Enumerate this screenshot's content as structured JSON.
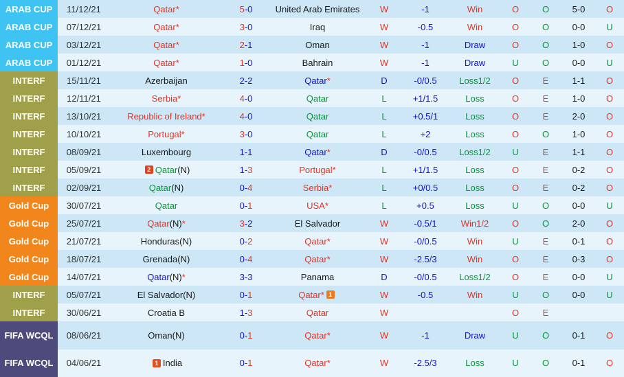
{
  "palette": {
    "red": "#e53324",
    "blue": "#1414cc",
    "green": "#009933",
    "black": "#1a1a1a",
    "date_text": "#333333",
    "label_text": "#ffffff",
    "row_dark": "#cde7f6",
    "row_light": "#e8f4fb",
    "comp_colors": {
      "arab": "#3fc3f3",
      "interf": "#a0a04a",
      "gold": "#f0861c",
      "fifa": "#4c4b7b"
    }
  },
  "rows": [
    {
      "comp": "ARAB CUP",
      "compKey": "arab",
      "date": "11/12/21",
      "home": [
        [
          "Qatar*",
          "red"
        ]
      ],
      "homeBadge": null,
      "score": [
        [
          "5",
          "red"
        ],
        [
          "-0",
          "blue"
        ]
      ],
      "away": [
        [
          "United Arab Emirates",
          "black"
        ]
      ],
      "awayBadge": null,
      "wdl": [
        "W",
        "red"
      ],
      "hcap": "-1",
      "res": [
        "Win",
        "red"
      ],
      "ou1": [
        "O",
        "red"
      ],
      "oe": [
        "O",
        "green"
      ],
      "ht": "5-0",
      "ou2": [
        "O",
        "red"
      ],
      "tall": false
    },
    {
      "comp": "ARAB CUP",
      "compKey": "arab",
      "date": "07/12/21",
      "home": [
        [
          "Qatar*",
          "red"
        ]
      ],
      "homeBadge": null,
      "score": [
        [
          "3",
          "red"
        ],
        [
          "-0",
          "blue"
        ]
      ],
      "away": [
        [
          "Iraq",
          "black"
        ]
      ],
      "awayBadge": null,
      "wdl": [
        "W",
        "red"
      ],
      "hcap": "-0.5",
      "res": [
        "Win",
        "red"
      ],
      "ou1": [
        "O",
        "red"
      ],
      "oe": [
        "O",
        "green"
      ],
      "ht": "0-0",
      "ou2": [
        "U",
        "green"
      ],
      "tall": false
    },
    {
      "comp": "ARAB CUP",
      "compKey": "arab",
      "date": "03/12/21",
      "home": [
        [
          "Qatar*",
          "red"
        ]
      ],
      "homeBadge": null,
      "score": [
        [
          "2",
          "red"
        ],
        [
          "-1",
          "blue"
        ]
      ],
      "away": [
        [
          "Oman",
          "black"
        ]
      ],
      "awayBadge": null,
      "wdl": [
        "W",
        "red"
      ],
      "hcap": "-1",
      "res": [
        "Draw",
        "blue"
      ],
      "ou1": [
        "O",
        "red"
      ],
      "oe": [
        "O",
        "green"
      ],
      "ht": "1-0",
      "ou2": [
        "O",
        "red"
      ],
      "tall": false
    },
    {
      "comp": "ARAB CUP",
      "compKey": "arab",
      "date": "01/12/21",
      "home": [
        [
          "Qatar*",
          "red"
        ]
      ],
      "homeBadge": null,
      "score": [
        [
          "1",
          "red"
        ],
        [
          "-0",
          "blue"
        ]
      ],
      "away": [
        [
          "Bahrain",
          "black"
        ]
      ],
      "awayBadge": null,
      "wdl": [
        "W",
        "red"
      ],
      "hcap": "-1",
      "res": [
        "Draw",
        "blue"
      ],
      "ou1": [
        "U",
        "green"
      ],
      "oe": [
        "O",
        "green"
      ],
      "ht": "0-0",
      "ou2": [
        "U",
        "green"
      ],
      "tall": false
    },
    {
      "comp": "INTERF",
      "compKey": "interf",
      "date": "15/11/21",
      "home": [
        [
          "Azerbaijan",
          "black"
        ]
      ],
      "homeBadge": null,
      "score": [
        [
          "2-2",
          "blue"
        ]
      ],
      "away": [
        [
          "Qatar",
          "blue"
        ],
        [
          "*",
          "red"
        ]
      ],
      "awayBadge": null,
      "wdl": [
        "D",
        "blue"
      ],
      "hcap": "-0/0.5",
      "res": [
        "Loss1/2",
        "green"
      ],
      "ou1": [
        "O",
        "red"
      ],
      "oe": [
        "E",
        "red"
      ],
      "ht": "1-1",
      "ou2": [
        "O",
        "red"
      ],
      "tall": false
    },
    {
      "comp": "INTERF",
      "compKey": "interf",
      "date": "12/11/21",
      "home": [
        [
          "Serbia*",
          "red"
        ]
      ],
      "homeBadge": null,
      "score": [
        [
          "4",
          "red"
        ],
        [
          "-0",
          "blue"
        ]
      ],
      "away": [
        [
          "Qatar",
          "green"
        ]
      ],
      "awayBadge": null,
      "wdl": [
        "L",
        "green"
      ],
      "hcap": "+1/1.5",
      "res": [
        "Loss",
        "green"
      ],
      "ou1": [
        "O",
        "red"
      ],
      "oe": [
        "E",
        "red"
      ],
      "ht": "1-0",
      "ou2": [
        "O",
        "red"
      ],
      "tall": false
    },
    {
      "comp": "INTERF",
      "compKey": "interf",
      "date": "13/10/21",
      "home": [
        [
          "Republic of Ireland*",
          "red"
        ]
      ],
      "homeBadge": null,
      "score": [
        [
          "4",
          "red"
        ],
        [
          "-0",
          "blue"
        ]
      ],
      "away": [
        [
          "Qatar",
          "green"
        ]
      ],
      "awayBadge": null,
      "wdl": [
        "L",
        "green"
      ],
      "hcap": "+0.5/1",
      "res": [
        "Loss",
        "green"
      ],
      "ou1": [
        "O",
        "red"
      ],
      "oe": [
        "E",
        "red"
      ],
      "ht": "2-0",
      "ou2": [
        "O",
        "red"
      ],
      "tall": false
    },
    {
      "comp": "INTERF",
      "compKey": "interf",
      "date": "10/10/21",
      "home": [
        [
          "Portugal*",
          "red"
        ]
      ],
      "homeBadge": null,
      "score": [
        [
          "3",
          "red"
        ],
        [
          "-0",
          "blue"
        ]
      ],
      "away": [
        [
          "Qatar",
          "green"
        ]
      ],
      "awayBadge": null,
      "wdl": [
        "L",
        "green"
      ],
      "hcap": "+2",
      "res": [
        "Loss",
        "green"
      ],
      "ou1": [
        "O",
        "red"
      ],
      "oe": [
        "O",
        "green"
      ],
      "ht": "1-0",
      "ou2": [
        "O",
        "red"
      ],
      "tall": false
    },
    {
      "comp": "INTERF",
      "compKey": "interf",
      "date": "08/09/21",
      "home": [
        [
          "Luxembourg",
          "black"
        ]
      ],
      "homeBadge": null,
      "score": [
        [
          "1-1",
          "blue"
        ]
      ],
      "away": [
        [
          "Qatar",
          "blue"
        ],
        [
          "*",
          "red"
        ]
      ],
      "awayBadge": null,
      "wdl": [
        "D",
        "blue"
      ],
      "hcap": "-0/0.5",
      "res": [
        "Loss1/2",
        "green"
      ],
      "ou1": [
        "U",
        "green"
      ],
      "oe": [
        "E",
        "red"
      ],
      "ht": "1-1",
      "ou2": [
        "O",
        "red"
      ],
      "tall": false
    },
    {
      "comp": "INTERF",
      "compKey": "interf",
      "date": "05/09/21",
      "home": [
        [
          "Qatar",
          "green"
        ],
        [
          "(N)",
          "black"
        ]
      ],
      "homeBadge": {
        "text": "2",
        "bg": "#e2401f",
        "pos": "before"
      },
      "score": [
        [
          "1-",
          "blue"
        ],
        [
          "3",
          "red"
        ]
      ],
      "away": [
        [
          "Portugal*",
          "red"
        ]
      ],
      "awayBadge": null,
      "wdl": [
        "L",
        "green"
      ],
      "hcap": "+1/1.5",
      "res": [
        "Loss",
        "green"
      ],
      "ou1": [
        "O",
        "red"
      ],
      "oe": [
        "E",
        "red"
      ],
      "ht": "0-2",
      "ou2": [
        "O",
        "red"
      ],
      "tall": false
    },
    {
      "comp": "INTERF",
      "compKey": "interf",
      "date": "02/09/21",
      "home": [
        [
          "Qatar",
          "green"
        ],
        [
          "(N)",
          "black"
        ]
      ],
      "homeBadge": null,
      "score": [
        [
          "0-",
          "blue"
        ],
        [
          "4",
          "red"
        ]
      ],
      "away": [
        [
          "Serbia*",
          "red"
        ]
      ],
      "awayBadge": null,
      "wdl": [
        "L",
        "green"
      ],
      "hcap": "+0/0.5",
      "res": [
        "Loss",
        "green"
      ],
      "ou1": [
        "O",
        "red"
      ],
      "oe": [
        "E",
        "red"
      ],
      "ht": "0-2",
      "ou2": [
        "O",
        "red"
      ],
      "tall": false
    },
    {
      "comp": "Gold Cup",
      "compKey": "gold",
      "date": "30/07/21",
      "home": [
        [
          "Qatar",
          "green"
        ]
      ],
      "homeBadge": null,
      "score": [
        [
          "0-",
          "blue"
        ],
        [
          "1",
          "red"
        ]
      ],
      "away": [
        [
          "USA*",
          "red"
        ]
      ],
      "awayBadge": null,
      "wdl": [
        "L",
        "green"
      ],
      "hcap": "+0.5",
      "res": [
        "Loss",
        "green"
      ],
      "ou1": [
        "U",
        "green"
      ],
      "oe": [
        "O",
        "green"
      ],
      "ht": "0-0",
      "ou2": [
        "U",
        "green"
      ],
      "tall": false
    },
    {
      "comp": "Gold Cup",
      "compKey": "gold",
      "date": "25/07/21",
      "home": [
        [
          "Qatar",
          "red"
        ],
        [
          "(N)",
          "black"
        ],
        [
          "*",
          "red"
        ]
      ],
      "homeBadge": null,
      "score": [
        [
          "3",
          "red"
        ],
        [
          "-2",
          "blue"
        ]
      ],
      "away": [
        [
          "El Salvador",
          "black"
        ]
      ],
      "awayBadge": null,
      "wdl": [
        "W",
        "red"
      ],
      "hcap": "-0.5/1",
      "res": [
        "Win1/2",
        "red"
      ],
      "ou1": [
        "O",
        "red"
      ],
      "oe": [
        "O",
        "green"
      ],
      "ht": "2-0",
      "ou2": [
        "O",
        "red"
      ],
      "tall": false
    },
    {
      "comp": "Gold Cup",
      "compKey": "gold",
      "date": "21/07/21",
      "home": [
        [
          "Honduras(N)",
          "black"
        ]
      ],
      "homeBadge": null,
      "score": [
        [
          "0-",
          "blue"
        ],
        [
          "2",
          "red"
        ]
      ],
      "away": [
        [
          "Qatar*",
          "red"
        ]
      ],
      "awayBadge": null,
      "wdl": [
        "W",
        "red"
      ],
      "hcap": "-0/0.5",
      "res": [
        "Win",
        "red"
      ],
      "ou1": [
        "U",
        "green"
      ],
      "oe": [
        "E",
        "red"
      ],
      "ht": "0-1",
      "ou2": [
        "O",
        "red"
      ],
      "tall": false
    },
    {
      "comp": "Gold Cup",
      "compKey": "gold",
      "date": "18/07/21",
      "home": [
        [
          "Grenada(N)",
          "black"
        ]
      ],
      "homeBadge": null,
      "score": [
        [
          "0-",
          "blue"
        ],
        [
          "4",
          "red"
        ]
      ],
      "away": [
        [
          "Qatar*",
          "red"
        ]
      ],
      "awayBadge": null,
      "wdl": [
        "W",
        "red"
      ],
      "hcap": "-2.5/3",
      "res": [
        "Win",
        "red"
      ],
      "ou1": [
        "O",
        "red"
      ],
      "oe": [
        "E",
        "red"
      ],
      "ht": "0-3",
      "ou2": [
        "O",
        "red"
      ],
      "tall": false
    },
    {
      "comp": "Gold Cup",
      "compKey": "gold",
      "date": "14/07/21",
      "home": [
        [
          "Qatar",
          "blue"
        ],
        [
          "(N)",
          "black"
        ],
        [
          "*",
          "red"
        ]
      ],
      "homeBadge": null,
      "score": [
        [
          "3-3",
          "blue"
        ]
      ],
      "away": [
        [
          "Panama",
          "black"
        ]
      ],
      "awayBadge": null,
      "wdl": [
        "D",
        "blue"
      ],
      "hcap": "-0/0.5",
      "res": [
        "Loss1/2",
        "green"
      ],
      "ou1": [
        "O",
        "red"
      ],
      "oe": [
        "E",
        "red"
      ],
      "ht": "0-0",
      "ou2": [
        "U",
        "green"
      ],
      "tall": false
    },
    {
      "comp": "INTERF",
      "compKey": "interf",
      "date": "05/07/21",
      "home": [
        [
          "El Salvador(N)",
          "black"
        ]
      ],
      "homeBadge": null,
      "score": [
        [
          "0-",
          "blue"
        ],
        [
          "1",
          "red"
        ]
      ],
      "away": [
        [
          "Qatar*",
          "red"
        ]
      ],
      "awayBadge": {
        "text": "1",
        "bg": "#ed7a1d",
        "pos": "after"
      },
      "wdl": [
        "W",
        "red"
      ],
      "hcap": "-0.5",
      "res": [
        "Win",
        "red"
      ],
      "ou1": [
        "U",
        "green"
      ],
      "oe": [
        "O",
        "green"
      ],
      "ht": "0-0",
      "ou2": [
        "U",
        "green"
      ],
      "tall": false
    },
    {
      "comp": "INTERF",
      "compKey": "interf",
      "date": "30/06/21",
      "home": [
        [
          "Croatia B",
          "black"
        ]
      ],
      "homeBadge": null,
      "score": [
        [
          "1-",
          "blue"
        ],
        [
          "3",
          "red"
        ]
      ],
      "away": [
        [
          "Qatar",
          "red"
        ]
      ],
      "awayBadge": null,
      "wdl": [
        "W",
        "red"
      ],
      "hcap": "",
      "res": null,
      "ou1": [
        "O",
        "red"
      ],
      "oe": [
        "E",
        "red"
      ],
      "ht": "",
      "ou2": null,
      "tall": false
    },
    {
      "comp": "FIFA WCQL",
      "compKey": "fifa",
      "date": "08/06/21",
      "home": [
        [
          "Oman(N)",
          "black"
        ]
      ],
      "homeBadge": null,
      "score": [
        [
          "0-",
          "blue"
        ],
        [
          "1",
          "red"
        ]
      ],
      "away": [
        [
          "Qatar*",
          "red"
        ]
      ],
      "awayBadge": null,
      "wdl": [
        "W",
        "red"
      ],
      "hcap": "-1",
      "res": [
        "Draw",
        "blue"
      ],
      "ou1": [
        "U",
        "green"
      ],
      "oe": [
        "O",
        "green"
      ],
      "ht": "0-1",
      "ou2": [
        "O",
        "red"
      ],
      "tall": true
    },
    {
      "comp": "FIFA WCQL",
      "compKey": "fifa",
      "date": "04/06/21",
      "home": [
        [
          "India",
          "black"
        ]
      ],
      "homeBadge": {
        "text": "1",
        "bg": "#e2511f",
        "pos": "before"
      },
      "score": [
        [
          "0-",
          "blue"
        ],
        [
          "1",
          "red"
        ]
      ],
      "away": [
        [
          "Qatar*",
          "red"
        ]
      ],
      "awayBadge": null,
      "wdl": [
        "W",
        "red"
      ],
      "hcap": "-2.5/3",
      "res": [
        "Loss",
        "green"
      ],
      "ou1": [
        "U",
        "green"
      ],
      "oe": [
        "O",
        "green"
      ],
      "ht": "0-1",
      "ou2": [
        "O",
        "red"
      ],
      "tall": true
    }
  ]
}
